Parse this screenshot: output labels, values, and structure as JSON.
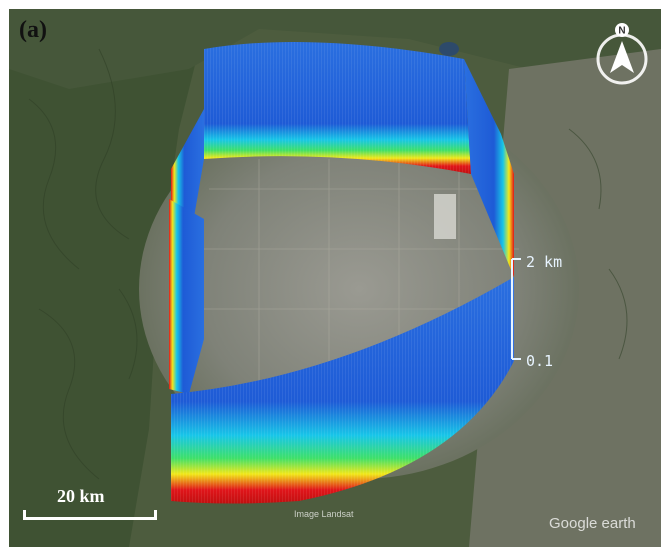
{
  "panel_label": "(a)",
  "scale_bar": {
    "label": "20 km"
  },
  "height_axis": {
    "top_label": "2 km",
    "bottom_label": "0.1"
  },
  "north_arrow": {
    "letter": "N",
    "icon": "north-arrow-icon"
  },
  "watermark": "Google earth",
  "imagery_credit": "Image Landsat",
  "colors": {
    "curtain_low": "#1e5bd6",
    "curtain_cyan": "#18c6e8",
    "curtain_yellow": "#f2e81a",
    "curtain_red": "#e0151a",
    "terrain": "#4a5a3c",
    "urban": "#8a8a82"
  }
}
